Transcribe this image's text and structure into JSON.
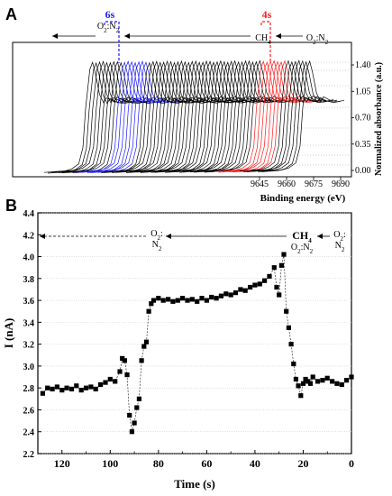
{
  "chart_data": [
    {
      "panel": "A",
      "type": "line",
      "description_labels": {
        "time_marker_1": "6s",
        "time_marker_2": "4s",
        "gas_1": "O2:N2",
        "gas_2": "CH4",
        "gas_3": "O2:N2"
      },
      "xlabel": "Binding energy (eV)",
      "ylabel": "Normalized absorbance (a.u.)",
      "x_ticks": [
        "9645",
        "9660",
        "9675",
        "9690"
      ],
      "y_ticks": [
        "0.00",
        "0.35",
        "0.70",
        "1.05",
        "1.40"
      ],
      "xlim": [
        9630,
        9690
      ],
      "ylim": [
        0,
        1.6
      ],
      "series_colors": {
        "default": "#000000",
        "highlight_1": "#1a1aff",
        "highlight_2": "#ff1a1a"
      },
      "spectrum": {
        "energy": [
          9630,
          9645,
          9650,
          9655,
          9658,
          9660,
          9663,
          9665,
          9667,
          9670,
          9673,
          9675,
          9680,
          9685,
          9690
        ],
        "absorbance": [
          0.0,
          0.02,
          0.05,
          0.12,
          0.35,
          0.9,
          1.45,
          1.55,
          1.4,
          1.1,
          0.98,
          1.05,
          1.0,
          0.98,
          1.0
        ]
      }
    },
    {
      "panel": "B",
      "type": "scatter",
      "xlabel": "Time (s)",
      "ylabel": "I (nA)",
      "xlim": [
        130,
        0
      ],
      "ylim": [
        2.2,
        4.4
      ],
      "x_ticks": [
        "120",
        "100",
        "80",
        "60",
        "40",
        "20",
        "0"
      ],
      "y_ticks": [
        "2.2",
        "2.4",
        "2.6",
        "2.8",
        "3.0",
        "3.2",
        "3.4",
        "3.6",
        "3.8",
        "4.0",
        "4.2",
        "4.4"
      ],
      "annotations": {
        "left_gas_top": "O2:",
        "left_gas_bottom": "N2",
        "middle_gas": "CH4",
        "middle_gas_sub": "O2:N2",
        "right_gas_top": "O2:",
        "right_gas_bottom": "N2"
      },
      "x": [
        128,
        126,
        124,
        122,
        120,
        118,
        116,
        114,
        112,
        110,
        108,
        106,
        104,
        102,
        100,
        98,
        96,
        95,
        94,
        93,
        92,
        91,
        90,
        89,
        88,
        87,
        86,
        85,
        84,
        83,
        82,
        80,
        78,
        76,
        74,
        72,
        70,
        68,
        66,
        64,
        62,
        60,
        58,
        56,
        54,
        52,
        50,
        48,
        46,
        44,
        42,
        40,
        38,
        36,
        34,
        32,
        31,
        30,
        29,
        28,
        27,
        26,
        25,
        24,
        23,
        22,
        21,
        20,
        19,
        18,
        17,
        16,
        14,
        12,
        10,
        8,
        6,
        4,
        2,
        0
      ],
      "y": [
        2.75,
        2.8,
        2.79,
        2.81,
        2.78,
        2.8,
        2.79,
        2.82,
        2.78,
        2.8,
        2.81,
        2.79,
        2.83,
        2.85,
        2.88,
        2.86,
        2.95,
        3.07,
        3.05,
        2.92,
        2.55,
        2.4,
        2.48,
        2.62,
        2.7,
        3.05,
        3.18,
        3.22,
        3.5,
        3.57,
        3.6,
        3.62,
        3.6,
        3.61,
        3.59,
        3.6,
        3.62,
        3.6,
        3.61,
        3.59,
        3.62,
        3.6,
        3.63,
        3.62,
        3.64,
        3.66,
        3.65,
        3.67,
        3.7,
        3.69,
        3.72,
        3.74,
        3.75,
        3.78,
        3.82,
        3.9,
        3.72,
        3.65,
        3.92,
        4.02,
        3.5,
        3.35,
        3.2,
        3.02,
        2.88,
        2.82,
        2.73,
        2.84,
        2.88,
        2.86,
        2.84,
        2.9,
        2.86,
        2.87,
        2.89,
        2.86,
        2.84,
        2.83,
        2.87,
        2.9
      ]
    }
  ]
}
